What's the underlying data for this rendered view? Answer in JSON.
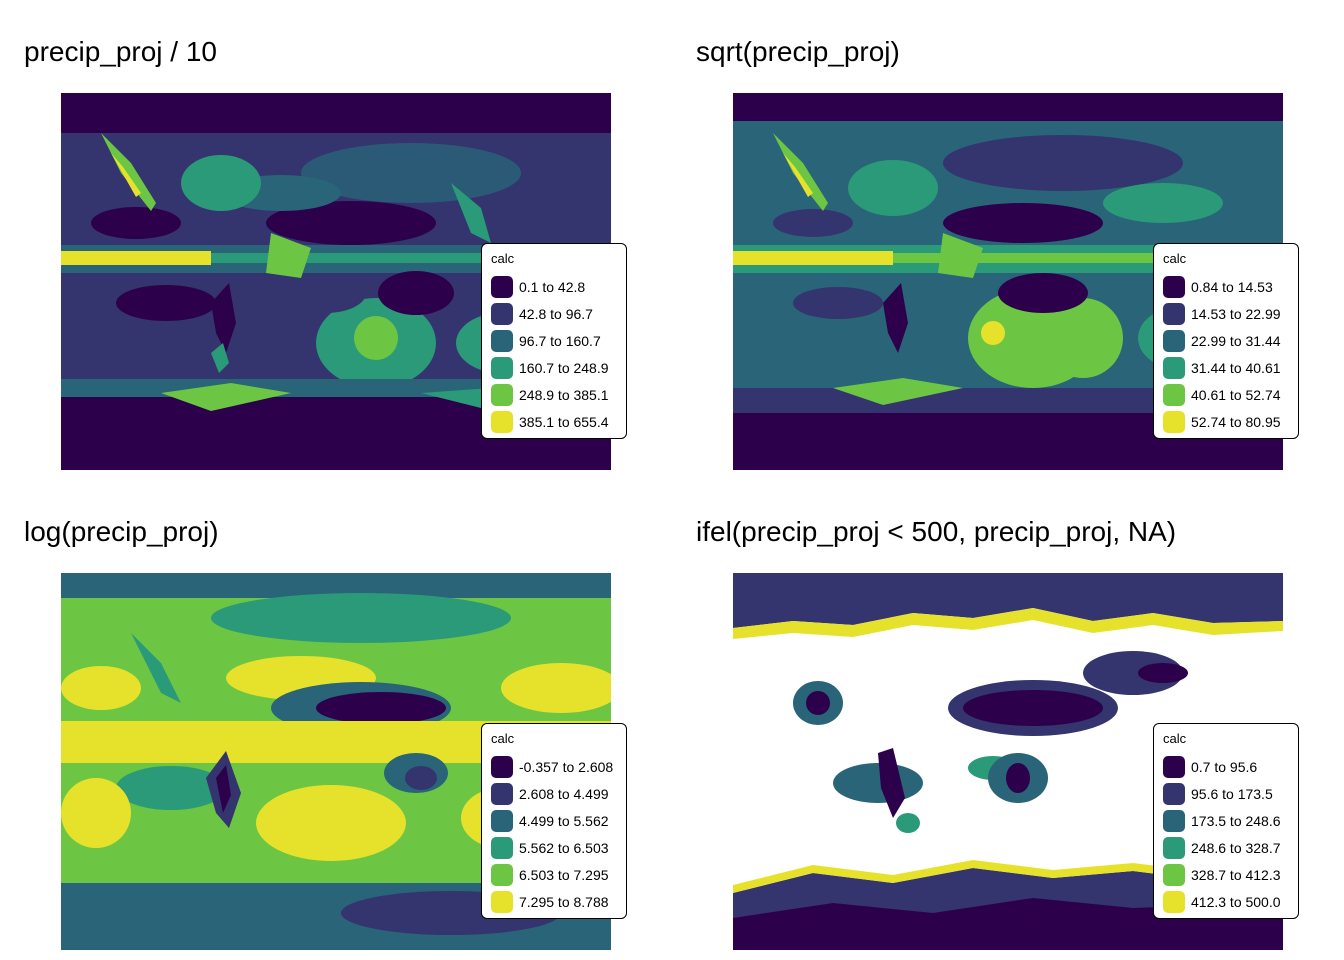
{
  "panels": [
    {
      "title": "precip_proj / 10",
      "legend": {
        "title": "calc",
        "classes": [
          {
            "label": "0.1 to 42.8",
            "color": "#2d004b"
          },
          {
            "label": "42.8 to 96.7",
            "color": "#34346f"
          },
          {
            "label": "96.7 to 160.7",
            "color": "#296478"
          },
          {
            "label": "160.7 to 248.9",
            "color": "#2a9a79"
          },
          {
            "label": "248.9 to 385.1",
            "color": "#6cc644"
          },
          {
            "label": "385.1 to 655.4",
            "color": "#e6e22b"
          }
        ]
      }
    },
    {
      "title": "sqrt(precip_proj)",
      "legend": {
        "title": "calc",
        "classes": [
          {
            "label": "0.84 to 14.53",
            "color": "#2d004b"
          },
          {
            "label": "14.53 to 22.99",
            "color": "#34346f"
          },
          {
            "label": "22.99 to 31.44",
            "color": "#296478"
          },
          {
            "label": "31.44 to 40.61",
            "color": "#2a9a79"
          },
          {
            "label": "40.61 to 52.74",
            "color": "#6cc644"
          },
          {
            "label": "52.74 to 80.95",
            "color": "#e6e22b"
          }
        ]
      }
    },
    {
      "title": "log(precip_proj)",
      "legend": {
        "title": "calc",
        "classes": [
          {
            "label": "-0.357 to 2.608",
            "color": "#2d004b"
          },
          {
            "label": "2.608 to 4.499",
            "color": "#34346f"
          },
          {
            "label": "4.499 to 5.562",
            "color": "#296478"
          },
          {
            "label": "5.562 to 6.503",
            "color": "#2a9a79"
          },
          {
            "label": "6.503 to 7.295",
            "color": "#6cc644"
          },
          {
            "label": "7.295 to 8.788",
            "color": "#e6e22b"
          }
        ]
      }
    },
    {
      "title": "ifel(precip_proj < 500, precip_proj, NA)",
      "legend": {
        "title": "calc",
        "classes": [
          {
            "label": "0.7 to 95.6",
            "color": "#2d004b"
          },
          {
            "label": "95.6 to 173.5",
            "color": "#34346f"
          },
          {
            "label": "173.5 to 248.6",
            "color": "#296478"
          },
          {
            "label": "248.6 to 328.7",
            "color": "#2a9a79"
          },
          {
            "label": "328.7 to 412.3",
            "color": "#6cc644"
          },
          {
            "label": "412.3 to 500.0",
            "color": "#e6e22b"
          }
        ]
      }
    }
  ]
}
